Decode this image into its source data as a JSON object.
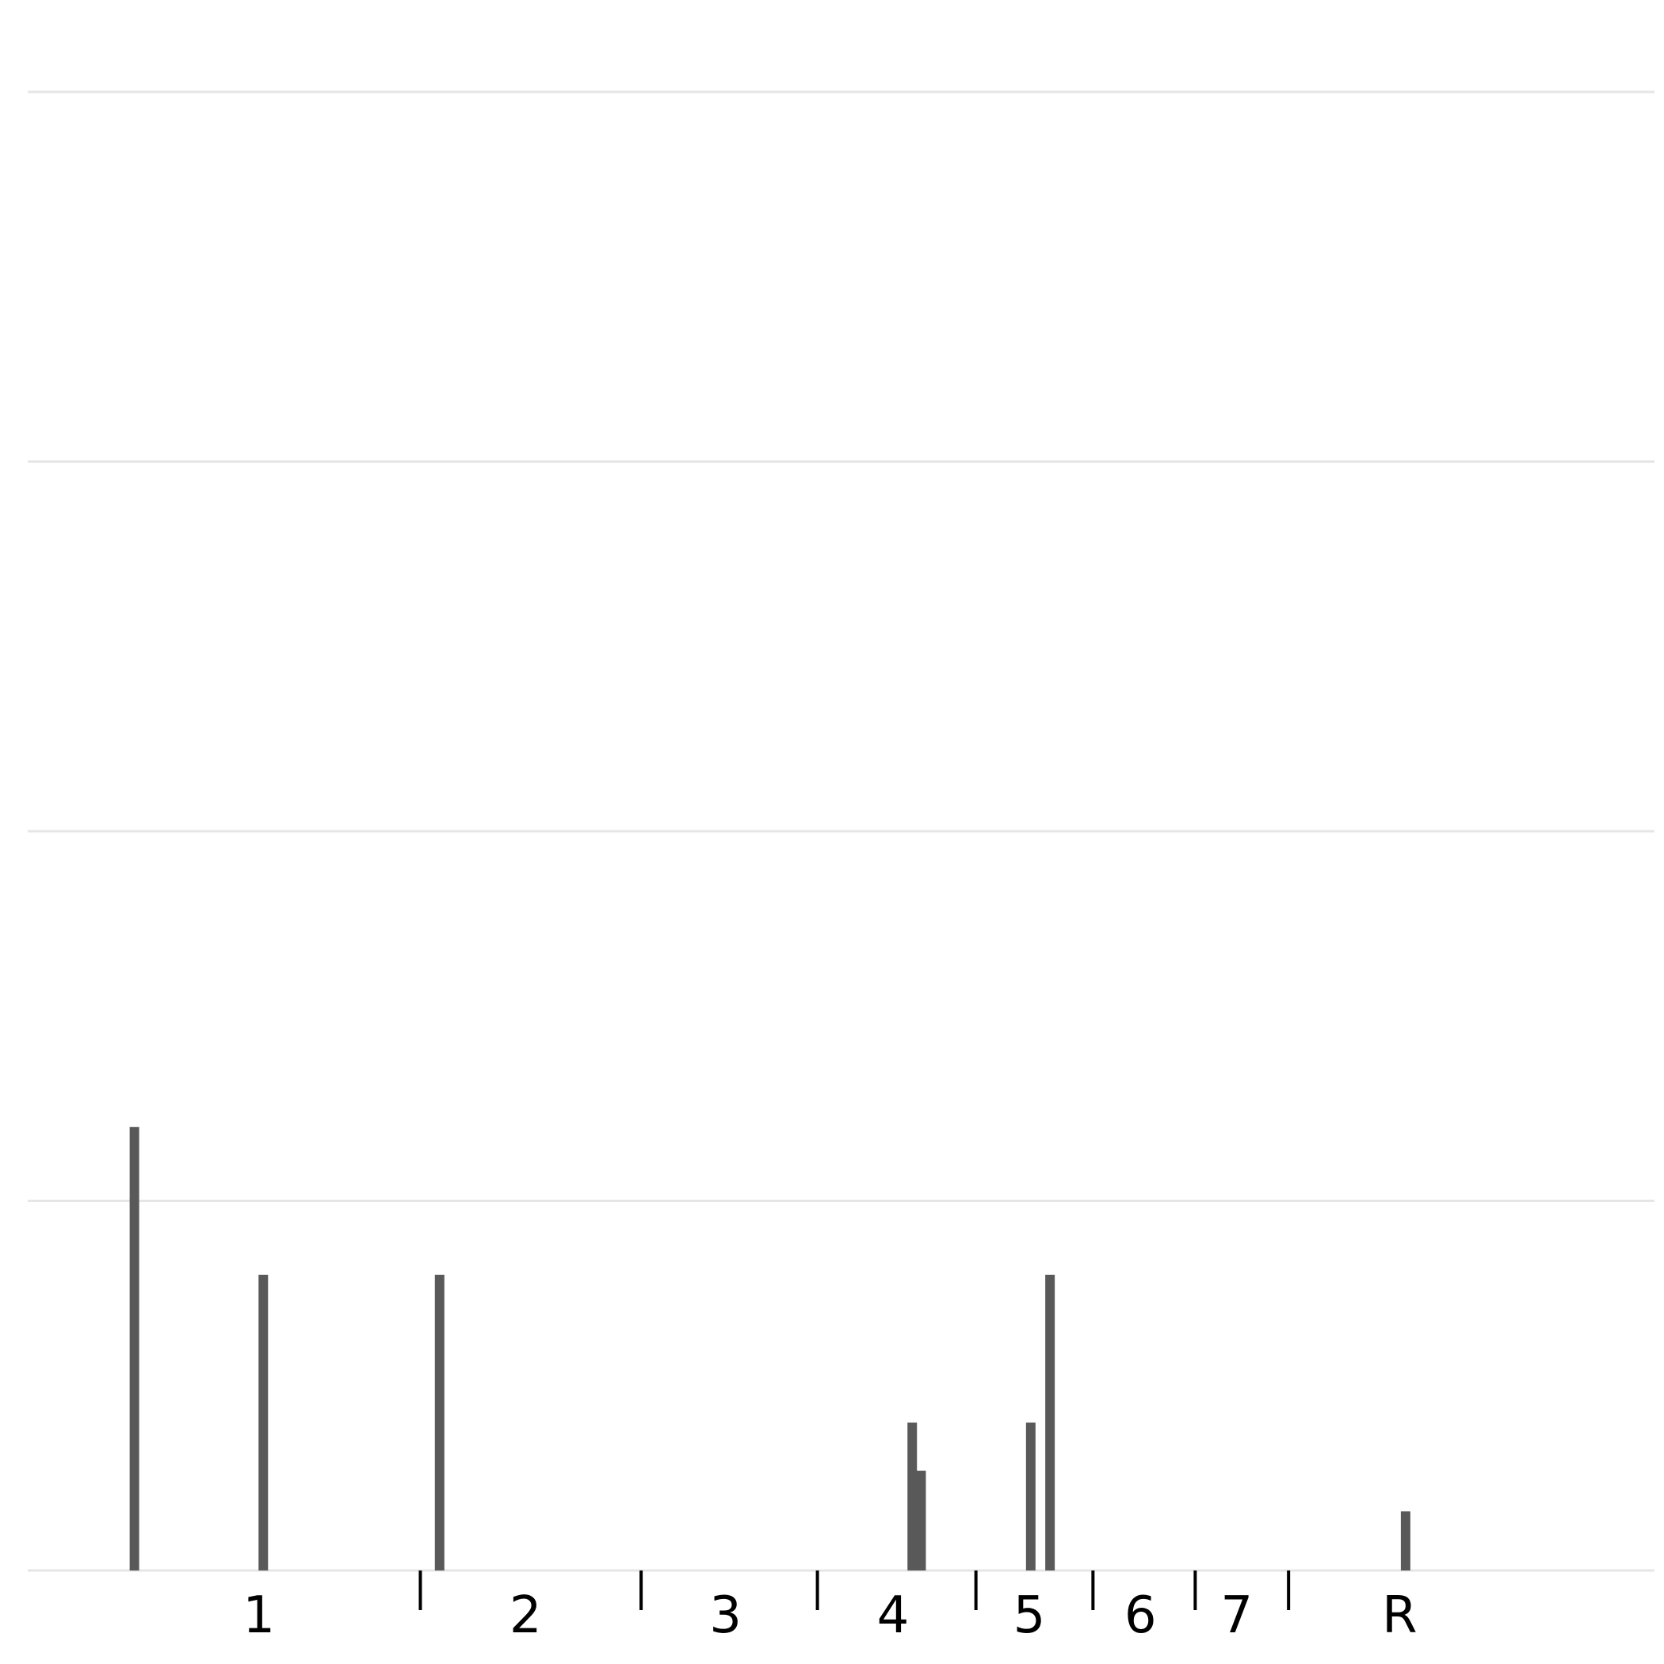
{
  "chart_data": {
    "type": "bar",
    "title": "",
    "xlabel": "",
    "ylabel": "",
    "grid": "horizontal",
    "legend": "none",
    "ylim": [
      0,
      4
    ],
    "y_gridlines": [
      0,
      1,
      2,
      3,
      4
    ],
    "x_range": [
      0,
      10.98
    ],
    "bar_color": "#595959",
    "grid_color": "#e6e6e6",
    "x_tick_labels": [
      {
        "label": "1",
        "x": 1.56
      },
      {
        "label": "2",
        "x": 3.36
      },
      {
        "label": "3",
        "x": 4.71
      },
      {
        "label": "4",
        "x": 5.84
      },
      {
        "label": "5",
        "x": 6.76
      },
      {
        "label": "6",
        "x": 7.51
      },
      {
        "label": "7",
        "x": 8.16
      },
      {
        "label": "R",
        "x": 9.26
      }
    ],
    "separators_x": [
      2.65,
      4.14,
      5.33,
      6.4,
      7.19,
      7.88,
      8.51
    ],
    "bars": [
      {
        "x": 0.72,
        "value": 1.2
      },
      {
        "x": 1.59,
        "value": 0.8
      },
      {
        "x": 2.78,
        "value": 0.8
      },
      {
        "x": 5.97,
        "value": 0.4
      },
      {
        "x": 6.03,
        "value": 0.27
      },
      {
        "x": 6.77,
        "value": 0.4
      },
      {
        "x": 6.9,
        "value": 0.8
      },
      {
        "x": 9.3,
        "value": 0.16
      }
    ]
  }
}
